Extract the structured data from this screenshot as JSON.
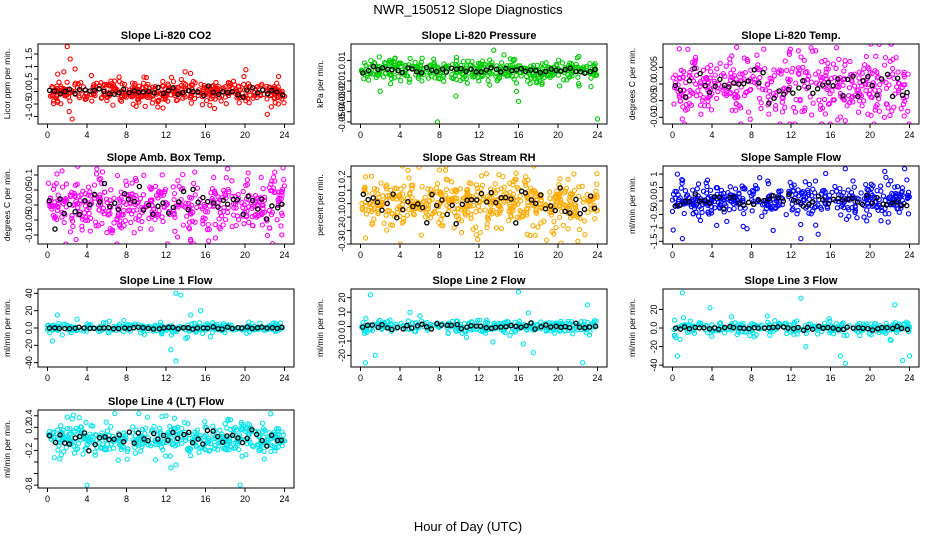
{
  "title": "NWR_150512  Slope Diagnostics",
  "xlabel": "Hour of Day (UTC)",
  "chart_data": [
    {
      "type": "scatter",
      "title": "Slope Li-820 CO2",
      "ylabel": "Licor ppm per min.",
      "color": "#ff0000",
      "xlim": [
        0,
        24
      ],
      "xticks": [
        0,
        4,
        8,
        12,
        16,
        20,
        24
      ],
      "ylim": [
        -1.3,
        1.9
      ],
      "yticks": [
        -1.0,
        -0.5,
        0.0,
        0.5,
        1.0,
        1.5
      ],
      "spread": 0.22,
      "black_spread": 0.1,
      "n": 420,
      "seed": 11,
      "outliers": [
        [
          2,
          1.8
        ],
        [
          2.3,
          1.3
        ],
        [
          2.5,
          -1.1
        ],
        [
          2.8,
          0.9
        ],
        [
          2.2,
          -0.8
        ],
        [
          23.4,
          0.6
        ]
      ]
    },
    {
      "type": "scatter",
      "title": "Slope Li-820 Pressure",
      "ylabel": "kPa per min.",
      "color": "#00cc00",
      "xlim": [
        0,
        24
      ],
      "xticks": [
        0,
        4,
        8,
        12,
        16,
        20,
        24
      ],
      "ylim": [
        -0.052,
        0.026
      ],
      "yticks": [
        -0.05,
        -0.04,
        -0.03,
        -0.02,
        -0.01,
        0.01
      ],
      "spread": 0.005,
      "black_spread": 0.002,
      "n": 420,
      "seed": 23,
      "outliers": [
        [
          7.8,
          -0.05
        ],
        [
          16,
          -0.03
        ],
        [
          24,
          -0.047
        ],
        [
          2,
          -0.02
        ],
        [
          13.5,
          0.02
        ]
      ]
    },
    {
      "type": "scatter",
      "title": "Slope Li-820 Temp.",
      "ylabel": "degrees C per min.",
      "color": "#ff00ff",
      "xlim": [
        0,
        24
      ],
      "xticks": [
        0,
        4,
        8,
        12,
        16,
        20,
        24
      ],
      "ylim": [
        -0.012,
        0.012
      ],
      "yticks": [
        -0.01,
        -0.005,
        0.0,
        0.005
      ],
      "spread": 0.0045,
      "black_spread": 0.003,
      "n": 420,
      "seed": 37,
      "outliers": [
        [
          17.5,
          -0.011
        ],
        [
          14.5,
          0.01
        ],
        [
          6.5,
          0.011
        ]
      ]
    },
    {
      "type": "scatter",
      "title": "Slope Amb. Box Temp.",
      "ylabel": "degrees C per min.",
      "color": "#ff00ff",
      "xlim": [
        0,
        24
      ],
      "xticks": [
        0,
        4,
        8,
        12,
        16,
        20,
        24
      ],
      "ylim": [
        -0.13,
        0.13
      ],
      "yticks": [
        -0.1,
        -0.05,
        0.0,
        0.05,
        0.1
      ],
      "spread": 0.045,
      "black_spread": 0.03,
      "n": 450,
      "seed": 41,
      "outliers": [
        [
          14.5,
          -0.12
        ],
        [
          17,
          -0.11
        ],
        [
          5,
          0.12
        ]
      ]
    },
    {
      "type": "scatter",
      "title": "Slope Gas Stream RH",
      "ylabel": "percent per min.",
      "color": "#ffaa00",
      "xlim": [
        0,
        24
      ],
      "xticks": [
        0,
        4,
        8,
        12,
        16,
        20,
        24
      ],
      "ylim": [
        -0.3,
        0.28
      ],
      "yticks": [
        -0.3,
        -0.2,
        -0.1,
        0.0,
        0.1,
        0.2
      ],
      "spread": 0.09,
      "black_spread": 0.06,
      "n": 520,
      "seed": 53,
      "outliers": [
        [
          8,
          0.25
        ],
        [
          22,
          -0.28
        ],
        [
          0.5,
          0.2
        ]
      ]
    },
    {
      "type": "scatter",
      "title": "Slope Sample Flow",
      "ylabel": "ml/min per min.",
      "color": "#0000ff",
      "xlim": [
        0,
        24
      ],
      "xticks": [
        0,
        4,
        8,
        12,
        16,
        20,
        24
      ],
      "ylim": [
        -1.6,
        1.3
      ],
      "yticks": [
        -1.5,
        -1.0,
        -0.5,
        0.0,
        0.5,
        1.0
      ],
      "spread": 0.28,
      "black_spread": 0.12,
      "n": 420,
      "seed": 67,
      "outliers": [
        [
          1,
          -1.4
        ],
        [
          13,
          -1.4
        ],
        [
          17.5,
          1.2
        ],
        [
          21.5,
          1.1
        ],
        [
          23.5,
          1.2
        ],
        [
          0.5,
          1.0
        ],
        [
          14.5,
          -0.9
        ]
      ]
    },
    {
      "type": "scatter",
      "title": "Slope Line 1 Flow",
      "ylabel": "ml/min per min.",
      "color": "#00e5ee",
      "xlim": [
        0,
        24
      ],
      "xticks": [
        0,
        4,
        8,
        12,
        16,
        20,
        24
      ],
      "ylim": [
        -45,
        45
      ],
      "yticks": [
        -40,
        -20,
        0,
        20,
        40
      ],
      "spread": 2.5,
      "black_spread": 0.5,
      "n": 300,
      "seed": 71,
      "outliers": [
        [
          13,
          40
        ],
        [
          13.5,
          38
        ],
        [
          13,
          -38
        ],
        [
          12.5,
          -25
        ],
        [
          14.5,
          15
        ],
        [
          15.5,
          20
        ],
        [
          0.5,
          -15
        ],
        [
          1,
          15
        ],
        [
          3,
          10
        ],
        [
          16.5,
          -10
        ],
        [
          1.5,
          -8
        ],
        [
          14,
          -12
        ]
      ]
    },
    {
      "type": "scatter",
      "title": "Slope Line 2 Flow",
      "ylabel": "ml/min per min.",
      "color": "#00e5ee",
      "xlim": [
        0,
        24
      ],
      "xticks": [
        0,
        4,
        8,
        12,
        16,
        20,
        24
      ],
      "ylim": [
        -28,
        26
      ],
      "yticks": [
        -20,
        -10,
        0,
        10,
        20
      ],
      "spread": 2.2,
      "black_spread": 1.2,
      "n": 300,
      "seed": 83,
      "outliers": [
        [
          0.5,
          -25
        ],
        [
          1.5,
          -20
        ],
        [
          16,
          24
        ],
        [
          17.5,
          -18
        ],
        [
          22.5,
          -25
        ],
        [
          23,
          15
        ],
        [
          1,
          22
        ],
        [
          16.5,
          -12
        ],
        [
          21.5,
          -5
        ]
      ]
    },
    {
      "type": "scatter",
      "title": "Slope Line 3 Flow",
      "ylabel": "ml/min per min.",
      "color": "#00e5ee",
      "xlim": [
        0,
        24
      ],
      "xticks": [
        0,
        4,
        8,
        12,
        16,
        20,
        24
      ],
      "ylim": [
        -42,
        42
      ],
      "yticks": [
        -40,
        -20,
        0,
        20
      ],
      "spread": 3.5,
      "black_spread": 1.2,
      "n": 300,
      "seed": 97,
      "outliers": [
        [
          1,
          38
        ],
        [
          13,
          32
        ],
        [
          17.5,
          -38
        ],
        [
          17,
          -30
        ],
        [
          23.3,
          -35
        ],
        [
          24,
          -30
        ],
        [
          0.5,
          -30
        ],
        [
          13.5,
          -20
        ],
        [
          3.8,
          22
        ],
        [
          22.5,
          25
        ]
      ]
    },
    {
      "type": "scatter",
      "title": "Slope Line 4 (LT) Flow",
      "ylabel": "ml/min per min.",
      "color": "#00e5ee",
      "xlim": [
        0,
        24
      ],
      "xticks": [
        0,
        4,
        8,
        12,
        16,
        20,
        24
      ],
      "ylim": [
        -0.85,
        0.5
      ],
      "yticks": [
        -0.8,
        -0.6,
        -0.4,
        -0.2,
        0.0,
        0.2,
        0.4
      ],
      "ytick_labels": [
        "-0.8",
        "",
        "",
        "-0.2",
        "",
        "0.2",
        "0.4"
      ],
      "spread": 0.12,
      "black_spread": 0.08,
      "n": 450,
      "seed": 109,
      "outliers": [
        [
          4,
          -0.8
        ],
        [
          19.5,
          -0.8
        ],
        [
          12,
          0.4
        ],
        [
          12.5,
          -0.5
        ],
        [
          13,
          -0.45
        ],
        [
          2.5,
          0.35
        ]
      ]
    }
  ]
}
